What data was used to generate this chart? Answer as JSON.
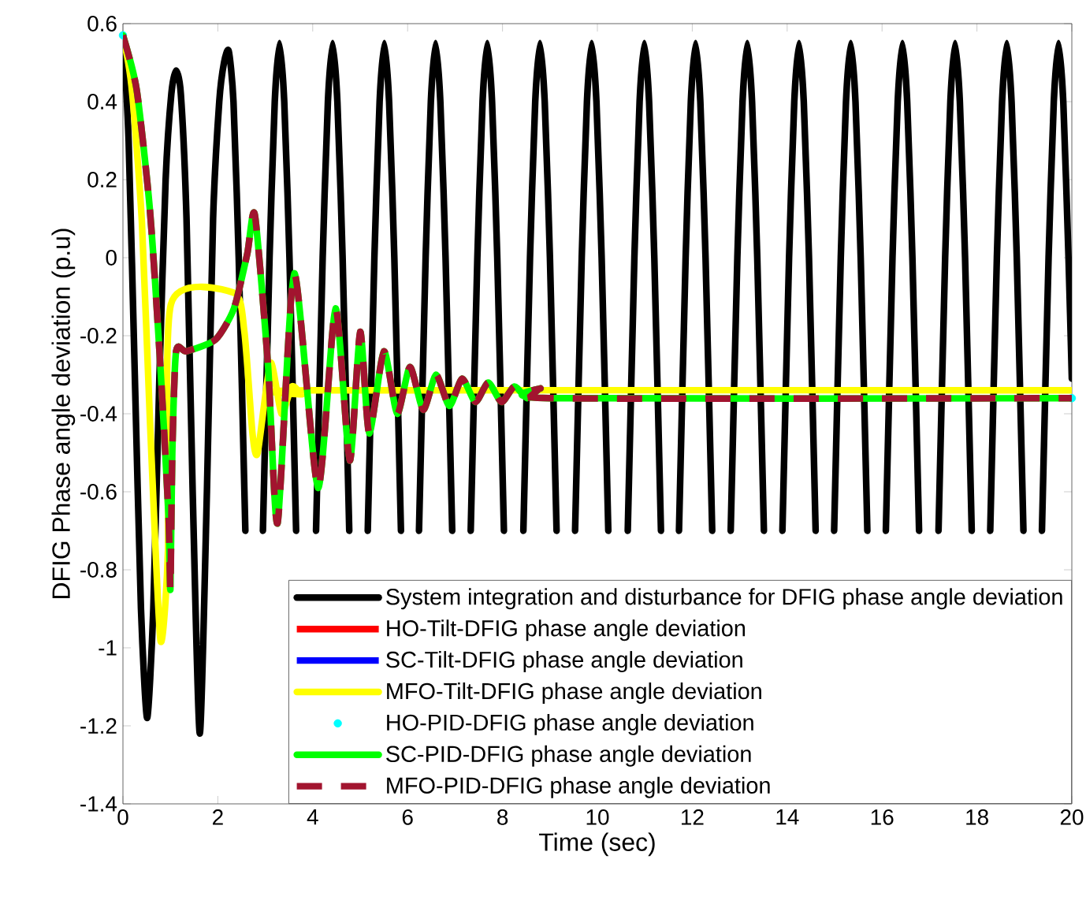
{
  "chart_data": {
    "type": "line",
    "xlabel": "Time (sec)",
    "ylabel": "DFIG Phase angle deviation (p.u)",
    "xlim": [
      0,
      20
    ],
    "ylim": [
      -1.4,
      0.6
    ],
    "xticks": [
      0,
      2,
      4,
      6,
      8,
      10,
      12,
      14,
      16,
      18,
      20
    ],
    "yticks": [
      -1.4,
      -1.2,
      -1,
      -0.8,
      -0.6,
      -0.4,
      -0.2,
      0,
      0.2,
      0.4,
      0.6
    ],
    "legend": "bottom right",
    "grid": false,
    "series": [
      {
        "name": "System integration and disturbance for DFIG phase angle deviation",
        "color": "#000000",
        "line_style": "solid",
        "x": [
          0,
          0.12,
          0.25,
          0.38,
          0.51,
          0.64,
          0.77,
          0.9,
          1.02,
          1.12,
          1.22,
          1.34,
          1.47,
          1.62,
          1.77,
          1.9,
          2.03,
          2.13,
          2.23,
          2.33,
          2.44,
          2.58,
          2.78,
          2.95,
          3.09,
          3.2,
          3.3,
          3.4,
          3.51,
          3.65,
          3.85,
          4.07,
          4.21,
          4.32,
          4.42,
          4.52,
          4.63,
          4.77,
          4.97,
          5.16,
          5.3,
          5.41,
          5.51,
          5.61,
          5.72,
          5.86,
          6.06,
          6.24,
          6.38,
          6.49,
          6.59,
          6.69,
          6.8,
          6.94,
          7.14,
          7.33,
          7.47,
          7.58,
          7.68,
          7.78,
          7.89,
          8.03,
          8.23,
          8.44,
          8.58,
          8.69,
          8.79,
          8.89,
          9.0,
          9.14,
          9.34,
          9.53,
          9.67,
          9.78,
          9.88,
          9.98,
          10.09,
          10.23,
          10.43,
          10.64,
          10.78,
          10.89,
          10.99,
          11.09,
          11.2,
          11.34,
          11.54,
          11.72,
          11.86,
          11.97,
          12.07,
          12.17,
          12.28,
          12.42,
          12.62,
          12.81,
          12.95,
          13.06,
          13.16,
          13.26,
          13.37,
          13.51,
          13.71,
          13.9,
          14.04,
          14.15,
          14.25,
          14.35,
          14.46,
          14.6,
          14.8,
          14.99,
          15.13,
          15.24,
          15.34,
          15.44,
          15.55,
          15.69,
          15.89,
          16.08,
          16.22,
          16.33,
          16.43,
          16.53,
          16.64,
          16.78,
          16.98,
          17.19,
          17.33,
          17.44,
          17.54,
          17.64,
          17.75,
          17.89,
          18.09,
          18.28,
          18.42,
          18.53,
          18.63,
          18.73,
          18.84,
          18.98,
          19.18,
          19.37,
          19.51,
          19.62,
          19.72,
          19.82,
          19.93,
          20
        ],
        "values": [
          0.57,
          0.3,
          -0.3,
          -0.9,
          -1.18,
          -0.9,
          -0.3,
          0.2,
          0.42,
          0.48,
          0.42,
          0.1,
          -0.6,
          -1.22,
          -0.6,
          0.1,
          0.4,
          0.5,
          0.53,
          0.4,
          0,
          -0.7,
          null,
          -0.7,
          0,
          0.4,
          0.55,
          0.4,
          0,
          -0.7,
          null,
          -0.7,
          0,
          0.4,
          0.55,
          0.4,
          0,
          -0.7,
          null,
          -0.7,
          0,
          0.4,
          0.55,
          0.4,
          0,
          -0.7,
          null,
          -0.7,
          0,
          0.4,
          0.55,
          0.4,
          0,
          -0.7,
          null,
          -0.7,
          0,
          0.4,
          0.55,
          0.4,
          0,
          -0.7,
          null,
          -0.7,
          0,
          0.4,
          0.55,
          0.4,
          0,
          -0.7,
          null,
          -0.7,
          0,
          0.4,
          0.55,
          0.4,
          0,
          -0.7,
          null,
          -0.7,
          0,
          0.4,
          0.55,
          0.4,
          0,
          -0.7,
          null,
          -0.7,
          0,
          0.4,
          0.55,
          0.4,
          0,
          -0.7,
          null,
          -0.7,
          0,
          0.4,
          0.55,
          0.4,
          0,
          -0.7,
          null,
          -0.7,
          0,
          0.4,
          0.55,
          0.4,
          0,
          -0.7,
          null,
          -0.7,
          0,
          0.4,
          0.55,
          0.4,
          0,
          -0.7,
          null,
          -0.7,
          0,
          0.4,
          0.55,
          0.4,
          0,
          -0.7,
          null,
          -0.7,
          0,
          0.4,
          0.55,
          0.4,
          0,
          -0.7,
          null,
          -0.7,
          0,
          0.4,
          0.55,
          0.4,
          0,
          -0.7,
          null,
          -0.7,
          0,
          0.4,
          0.55,
          0.4,
          0,
          -0.31
        ]
      },
      {
        "name": "HO-Tilt-DFIG phase angle deviation",
        "color": "#ff0000",
        "line_style": "solid"
      },
      {
        "name": "SC-Tilt-DFIG phase angle deviation",
        "color": "#0000ff",
        "line_style": "solid"
      },
      {
        "name": "MFO-Tilt-DFIG phase angle deviation",
        "color": "#ffff00",
        "line_style": "solid",
        "x": [
          0,
          0.18,
          0.4,
          0.57,
          0.79,
          0.95,
          1.01,
          2.34,
          2.56,
          2.73,
          2.84,
          3.11,
          3.34,
          3.56,
          3.78,
          4.0,
          20
        ],
        "values": [
          0.57,
          0.44,
          0.09,
          -0.42,
          -0.98,
          -0.75,
          -0.12,
          -0.09,
          -0.19,
          -0.45,
          -0.5,
          -0.27,
          -0.4,
          -0.33,
          -0.35,
          -0.34,
          -0.34
        ]
      },
      {
        "name": "HO-PID-DFIG phase angle deviation",
        "color": "#00ffff",
        "type": "scatter",
        "x": [
          0,
          20
        ],
        "values": [
          0.57,
          -0.36
        ]
      },
      {
        "name": "SC-PID-DFIG phase angle deviation",
        "color": "#00ff00",
        "line_style": "solid",
        "x": [
          0,
          0.29,
          0.57,
          0.79,
          0.96,
          1.0,
          1.04,
          1.12,
          1.34,
          1.95,
          2.34,
          2.62,
          2.78,
          3.06,
          3.26,
          3.61,
          4.11,
          4.48,
          4.78,
          5.0,
          5.19,
          5.5,
          5.78,
          6.05,
          6.33,
          6.6,
          6.88,
          7.15,
          7.43,
          7.7,
          7.98,
          8.25,
          8.52,
          8.8,
          9.0,
          20
        ],
        "values": [
          0.57,
          0.43,
          0.12,
          -0.28,
          -0.66,
          -0.85,
          -0.5,
          -0.24,
          -0.24,
          -0.21,
          -0.13,
          0.01,
          0.11,
          -0.28,
          -0.68,
          -0.04,
          -0.59,
          -0.13,
          -0.52,
          -0.19,
          -0.45,
          -0.24,
          -0.4,
          -0.28,
          -0.39,
          -0.3,
          -0.38,
          -0.31,
          -0.37,
          -0.32,
          -0.37,
          -0.33,
          -0.36,
          -0.335,
          -0.36,
          -0.36
        ]
      },
      {
        "name": "MFO-PID-DFIG phase angle deviation",
        "color": "#a2142f",
        "line_style": "dashed",
        "x": [
          0,
          0.29,
          0.57,
          0.79,
          0.96,
          1.0,
          1.04,
          1.12,
          1.34,
          1.95,
          2.34,
          2.62,
          2.78,
          3.06,
          3.26,
          3.61,
          4.11,
          4.48,
          4.78,
          5.0,
          5.19,
          5.5,
          5.78,
          6.05,
          6.33,
          6.6,
          6.88,
          7.15,
          7.43,
          7.7,
          7.98,
          8.25,
          8.52,
          8.8,
          9.0,
          20
        ],
        "values": [
          0.57,
          0.43,
          0.12,
          -0.28,
          -0.66,
          -0.85,
          -0.5,
          -0.24,
          -0.24,
          -0.21,
          -0.13,
          0.01,
          0.11,
          -0.28,
          -0.68,
          -0.04,
          -0.59,
          -0.13,
          -0.52,
          -0.19,
          -0.45,
          -0.24,
          -0.4,
          -0.28,
          -0.39,
          -0.3,
          -0.38,
          -0.31,
          -0.37,
          -0.32,
          -0.37,
          -0.33,
          -0.36,
          -0.335,
          -0.36,
          -0.36
        ]
      }
    ]
  }
}
